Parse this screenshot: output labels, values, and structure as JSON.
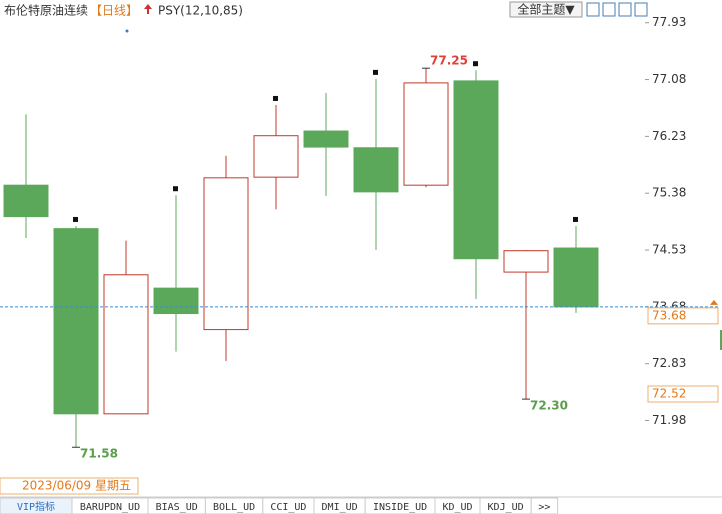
{
  "chart_data": {
    "type": "candlestick",
    "title": "布伦特原油连续",
    "period": "【日线】",
    "indicator": "PSY(12,10,85)",
    "theme_button": "全部主题▼",
    "open": [
      75.5,
      74.85,
      72.08,
      73.96,
      73.34,
      75.62,
      76.31,
      76.06,
      75.5,
      77.06,
      74.2,
      74.56
    ],
    "high": [
      76.56,
      74.89,
      74.67,
      75.35,
      75.94,
      76.7,
      76.88,
      77.09,
      77.25,
      77.22,
      74.53,
      74.89
    ],
    "low": [
      74.71,
      71.58,
      72.08,
      73.01,
      72.87,
      75.14,
      75.34,
      74.53,
      75.47,
      73.8,
      72.3,
      73.59
    ],
    "close": [
      75.03,
      72.08,
      74.16,
      73.58,
      75.61,
      76.24,
      76.07,
      75.4,
      77.03,
      74.4,
      74.52,
      73.68
    ],
    "up_color": "#c0392b",
    "down_color": "#5ba85b",
    "annotations": [
      "77.25",
      "72.30",
      "71.58"
    ],
    "last_price": 73.68,
    "last_price_label": "73.68",
    "cursor_label": "72.52",
    "date_label": "2023/06/09 星期五",
    "ylim": [
      71.12,
      78.27
    ],
    "yticks": [
      {
        "value": 77.93,
        "label": "77.93"
      },
      {
        "value": 77.08,
        "label": "77.08"
      },
      {
        "value": 76.23,
        "label": "76.23"
      },
      {
        "value": 75.38,
        "label": "75.38"
      },
      {
        "value": 74.53,
        "label": "74.53"
      },
      {
        "value": 73.68,
        "label": "73.68"
      },
      {
        "value": 72.83,
        "label": "72.83"
      },
      {
        "value": 71.98,
        "label": "71.98"
      }
    ],
    "tabs": [
      "VIP指标",
      "BARUPDN_UD",
      "BIAS_UD",
      "BOLL_UD",
      "CCI_UD",
      "DMI_UD",
      "INSIDE_UD",
      "KD_UD",
      "KDJ_UD",
      ">>"
    ]
  }
}
